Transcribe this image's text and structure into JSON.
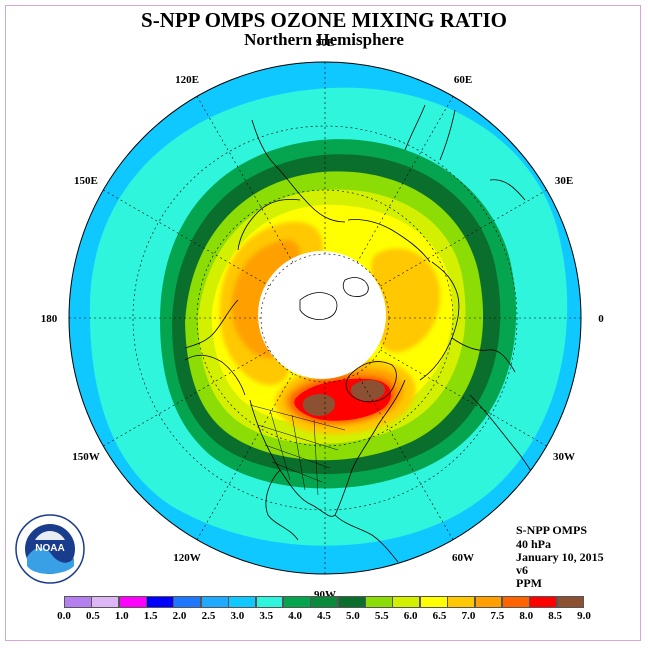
{
  "title": "S-NPP OMPS OZONE MIXING RATIO",
  "subtitle": "Northern Hemisphere",
  "info": {
    "instrument": "S-NPP OMPS",
    "level": "40 hPa",
    "date": "January 10, 2015",
    "version": "v6",
    "units": "PPM"
  },
  "logo": {
    "text": "NOAA",
    "ring_text": "NATIONAL OCEANIC AND ATMOSPHERIC ADMINISTRATION · U.S. DEPARTMENT OF COMMERCE"
  },
  "longitude_labels": [
    {
      "text": "90E",
      "lon": 90
    },
    {
      "text": "60E",
      "lon": 60
    },
    {
      "text": "30E",
      "lon": 30
    },
    {
      "text": "0",
      "lon": 0
    },
    {
      "text": "30W",
      "lon": -30
    },
    {
      "text": "60W",
      "lon": -60
    },
    {
      "text": "90W",
      "lon": -90
    },
    {
      "text": "120W",
      "lon": -120
    },
    {
      "text": "150W",
      "lon": -150
    },
    {
      "text": "180",
      "lon": 180
    },
    {
      "text": "150E",
      "lon": 150
    },
    {
      "text": "120E",
      "lon": 120
    }
  ],
  "legend": {
    "ticks": [
      "0.0",
      "0.5",
      "1.0",
      "1.5",
      "2.0",
      "2.5",
      "3.0",
      "3.5",
      "4.0",
      "4.5",
      "5.0",
      "5.5",
      "6.0",
      "6.5",
      "7.0",
      "7.5",
      "8.0",
      "8.5",
      "9.0"
    ],
    "colors": [
      "#b57ff0",
      "#dcb6f5",
      "#ff00ff",
      "#0000ff",
      "#1e78ff",
      "#1eaaff",
      "#0fc8ff",
      "#2ef5dc",
      "#05a550",
      "#0a8a3c",
      "#0a6e2d",
      "#8cdc05",
      "#d2f000",
      "#ffff00",
      "#ffc800",
      "#ffa000",
      "#ff6400",
      "#ff0000",
      "#8c5032"
    ]
  },
  "map_data": {
    "projection": "north polar stereographic",
    "polar_night_region": "no data (white)",
    "contour_levels_ppm": [
      3.0,
      3.5,
      4.0,
      4.5,
      5.0,
      5.5,
      6.0,
      6.5,
      7.0,
      7.5,
      8.0,
      8.5,
      9.0
    ],
    "max_region": "north-eastern North America / North Atlantic, > 8.5 ppm"
  }
}
